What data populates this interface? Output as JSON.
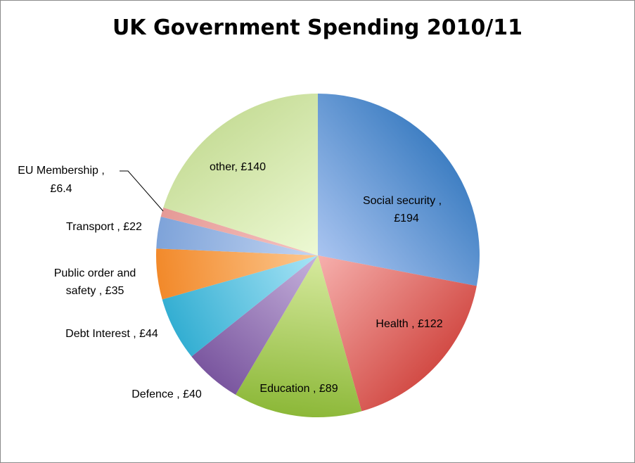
{
  "chart_data": {
    "type": "pie",
    "title": "UK Government Spending 2010/11",
    "slices": [
      {
        "label": "Social security ,",
        "value_label": "£194",
        "value": 194,
        "color_light": "#a9c4f0",
        "color_dark": "#3f7fc3"
      },
      {
        "label": "Health ,",
        "value_label": "£122",
        "value": 122,
        "color_light": "#f6b0ad",
        "color_dark": "#d24b45"
      },
      {
        "label": "Education ,",
        "value_label": "£89",
        "value": 89,
        "color_light": "#d7ea9f",
        "color_dark": "#8cb838"
      },
      {
        "label": "Defence ,",
        "value_label": "£40",
        "value": 40,
        "color_light": "#c6b2dc",
        "color_dark": "#7a569f"
      },
      {
        "label": "Debt Interest ,",
        "value_label": "£44",
        "value": 44,
        "color_light": "#a8e4f6",
        "color_dark": "#33aed2"
      },
      {
        "label": "Public order and safety ,",
        "value_label": "£35",
        "value": 35,
        "color_light": "#fcc890",
        "color_dark": "#f2892a"
      },
      {
        "label": "Transport ,",
        "value_label": "£22",
        "value": 22,
        "color_light": "#c3d5f2",
        "color_dark": "#7ea3d9"
      },
      {
        "label": "EU Membership ,",
        "value_label": "£6.4",
        "value": 6.4,
        "color_light": "#f6c4c2",
        "color_dark": "#e59a96"
      },
      {
        "label": "other,",
        "value_label": "£140",
        "value": 140,
        "color_light": "#edf9d4",
        "color_dark": "#c8de9a"
      }
    ]
  },
  "labels": {
    "social_security": "Social security ,",
    "social_security_value": "£194",
    "health": "Health , £122",
    "education": "Education , £89",
    "defence": "Defence , £40",
    "debt_interest": "Debt Interest , £44",
    "public_order_line1": "Public order and",
    "public_order_line2": "safety  , £35",
    "transport": "Transport  , £22",
    "eu_membership_line1": "EU Membership  ,",
    "eu_membership_line2": "£6.4",
    "other": "other, £140"
  }
}
